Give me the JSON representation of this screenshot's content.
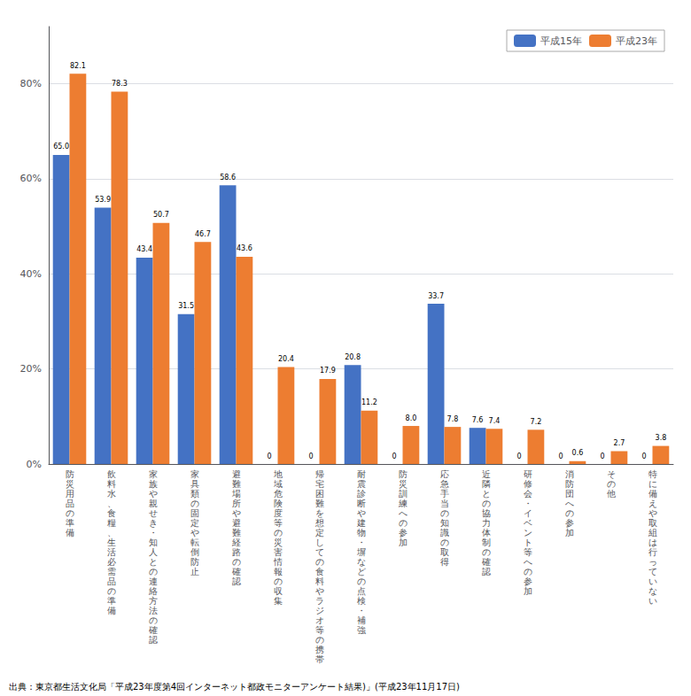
{
  "chart_data": {
    "type": "bar",
    "categories": [
      "防災用品の準備",
      "飲料水、食糧、生活必需品の準備",
      "家族や親せき・知人との連絡方法の確認",
      "家具類の固定や転倒防止",
      "避難場所や避難経路の確認",
      "地域危険度等の災害情報の収集",
      "帰宅困難を想定しての食料やラジオ等の携帯",
      "耐震診断や建物・塀などの点検・補強",
      "防災訓練への参加",
      "応急手当の知識の取得",
      "近隣との協力体制の確認",
      "研修会・イベント等への参加",
      "消防団への参加",
      "その他",
      "特に備えや取組は行っていない"
    ],
    "series": [
      {
        "name": "平成15年",
        "color": "#4472C4",
        "values": [
          65.0,
          53.9,
          43.4,
          31.5,
          58.6,
          0,
          0,
          20.8,
          0,
          33.7,
          7.6,
          0,
          0,
          0,
          0
        ],
        "value_labels": [
          "65.0",
          "53.9",
          "43.4",
          "31.5",
          "58.6",
          "0",
          "0",
          "20.8",
          "0",
          "33.7",
          "7.6",
          "0",
          "0",
          "0",
          "0"
        ]
      },
      {
        "name": "平成23年",
        "color": "#ED7D31",
        "values": [
          82.1,
          78.3,
          50.7,
          46.7,
          43.6,
          20.4,
          17.9,
          11.2,
          8.0,
          7.8,
          7.4,
          7.2,
          0.6,
          2.7,
          3.8
        ],
        "value_labels": [
          "82.1",
          "78.3",
          "50.7",
          "46.7",
          "43.6",
          "20.4",
          "17.9",
          "11.2",
          "8.0",
          "7.8",
          "7.4",
          "7.2",
          "0.6",
          "2.7",
          "3.8"
        ]
      }
    ],
    "ylim": [
      0,
      92
    ],
    "yticks": [
      {
        "value": 0,
        "label": "0%"
      },
      {
        "value": 20,
        "label": "20%"
      },
      {
        "value": 40,
        "label": "40%"
      },
      {
        "value": 60,
        "label": "60%"
      },
      {
        "value": 80,
        "label": "80%"
      }
    ],
    "grid": true,
    "legend": "upper right",
    "data_labels": true,
    "annotations": [
      "出典：東京都生活文化局「平成23年度第4回インターネット都政モニターアンケート結果)」(平成23年11月17日)"
    ]
  }
}
